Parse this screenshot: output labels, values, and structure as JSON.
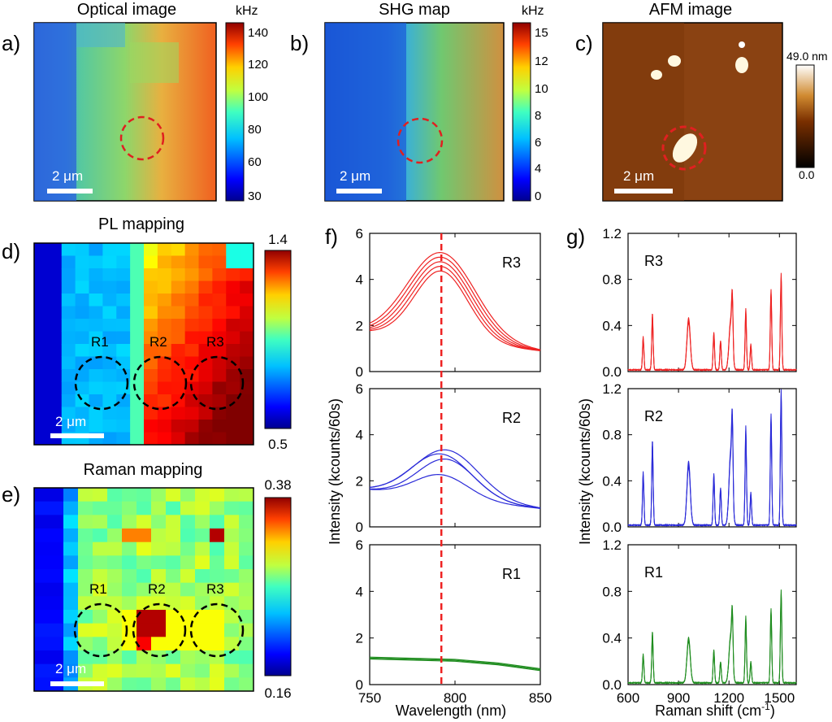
{
  "panels": {
    "a": {
      "letter": "a)",
      "title": "Optical image",
      "unit": "kHz",
      "ticks": [
        "140",
        "120",
        "100",
        "80",
        "60",
        "30"
      ],
      "scalebar": "2 μm"
    },
    "b": {
      "letter": "b)",
      "title": "SHG map",
      "unit": "kHz",
      "ticks": [
        "15",
        "12",
        "10",
        "8",
        "6",
        "4",
        "0"
      ],
      "scalebar": "2 μm"
    },
    "c": {
      "letter": "c)",
      "title": "AFM image",
      "top": "49.0 nm",
      "bottom": "0.0",
      "scalebar": "2 μm"
    },
    "d": {
      "letter": "d)",
      "title": "PL mapping",
      "top": "1.4",
      "bottom": "0.5",
      "scalebar": "2 μm",
      "regions": [
        "R1",
        "R2",
        "R3"
      ]
    },
    "e": {
      "letter": "e)",
      "title": "Raman mapping",
      "top": "0.38",
      "bottom": "0.16",
      "scalebar": "2 μm",
      "regions": [
        "R1",
        "R2",
        "R3"
      ]
    },
    "f": {
      "letter": "f)"
    },
    "g": {
      "letter": "g)"
    }
  },
  "chart_data": [
    {
      "id": "f",
      "type": "line",
      "subplots": [
        "R3",
        "R2",
        "R1"
      ],
      "xlabel": "Wavelength (nm)",
      "ylabel": "Intensity (kcounts/60s)",
      "xlim": [
        750,
        850
      ],
      "ylim": [
        0,
        6
      ],
      "xticks": [
        "750",
        "800",
        "850"
      ],
      "yticks": [
        "0",
        "2",
        "4",
        "6"
      ],
      "marker_nm": 792,
      "line_color_R3": "#ee2222",
      "line_color_R2": "#2a2ad8",
      "line_color_R1": "#1e8c1e",
      "marker_color": "#ee2222",
      "series": [
        {
          "name": "R3",
          "x": [
            750,
            760,
            770,
            780,
            785,
            790,
            792,
            795,
            800,
            810,
            820,
            830,
            840,
            850
          ],
          "peaks": [
            4.3,
            4.5,
            4.7,
            4.9,
            5.1
          ],
          "baseline_left": 1.7,
          "baseline_right": 0.9
        },
        {
          "name": "R2",
          "x": [
            750,
            760,
            770,
            780,
            785,
            790,
            795,
            800,
            810,
            820,
            830,
            840,
            850
          ],
          "peaks": [
            2.2,
            2.9,
            3.1,
            3.3
          ],
          "baseline_left": 1.6,
          "baseline_right": 0.8
        },
        {
          "name": "R1",
          "x": [
            750,
            775,
            800,
            825,
            850
          ],
          "y": [
            1.1,
            1.05,
            1.0,
            0.85,
            0.6
          ]
        }
      ]
    },
    {
      "id": "g",
      "type": "line",
      "subplots": [
        "R3",
        "R2",
        "R1"
      ],
      "xlabel": "Raman shift (cm",
      "xlabel_sup": "-1",
      "xlabel_end": ")",
      "ylabel": "Intensity (kcounts/60s)",
      "xlim": [
        600,
        1600
      ],
      "ylim": [
        0,
        1.2
      ],
      "xticks": [
        "600",
        "900",
        "1200",
        "1500"
      ],
      "yticks": [
        "0.0",
        "0.4",
        "0.8",
        "1.2"
      ],
      "line_color_R3": "#ee2222",
      "line_color_R2": "#2a2ad8",
      "line_color_R1": "#1e8c1e",
      "peak_positions": [
        690,
        745,
        960,
        1110,
        1150,
        1210,
        1220,
        1300,
        1330,
        1450,
        1510
      ],
      "series": [
        {
          "name": "R3",
          "peaks": [
            0.28,
            0.48,
            0.44,
            0.32,
            0.25,
            0.42,
            0.42,
            0.52,
            0.22,
            0.68,
            0.82
          ]
        },
        {
          "name": "R2",
          "peaks": [
            0.45,
            0.72,
            0.54,
            0.44,
            0.32,
            0.62,
            0.6,
            0.84,
            0.28,
            0.94,
            1.15
          ]
        },
        {
          "name": "R1",
          "peaks": [
            0.24,
            0.43,
            0.38,
            0.28,
            0.18,
            0.4,
            0.4,
            0.56,
            0.18,
            0.62,
            0.78
          ]
        }
      ]
    }
  ]
}
